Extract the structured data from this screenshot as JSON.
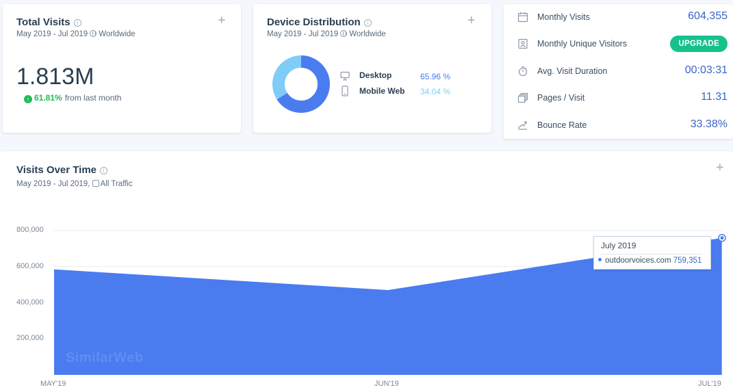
{
  "total_visits": {
    "title": "Total Visits",
    "date_range": "May 2019 - Jul 2019",
    "region": "Worldwide",
    "value": "1.813M",
    "change_pct": "61.81%",
    "change_text": "from last month",
    "colors": {
      "up": "#1fbd55"
    }
  },
  "device_distribution": {
    "title": "Device Distribution",
    "date_range": "May 2019 - Jul 2019",
    "region": "Worldwide",
    "devices": [
      {
        "name": "Desktop",
        "share": "65.96 %",
        "value": 65.96,
        "color": "#4a7cf0",
        "icon": "desktop-icon"
      },
      {
        "name": "Mobile Web",
        "share": "34.04 %",
        "value": 34.04,
        "color": "#7fcdf7",
        "icon": "mobile-icon"
      }
    ]
  },
  "metrics": [
    {
      "label": "Monthly Visits",
      "value": "604,355",
      "icon": "calendar-icon"
    },
    {
      "label": "Monthly Unique Visitors",
      "button": "UPGRADE",
      "icon": "id-card-icon"
    },
    {
      "label": "Avg. Visit Duration",
      "value": "00:03:31",
      "icon": "stopwatch-icon"
    },
    {
      "label": "Pages / Visit",
      "value": "11.31",
      "icon": "pages-icon"
    },
    {
      "label": "Bounce Rate",
      "value": "33.38%",
      "icon": "bounce-arrow-icon"
    }
  ],
  "visits_over_time": {
    "title": "Visits Over Time",
    "date_range": "May 2019 - Jul 2019,",
    "traffic": "All Traffic",
    "watermark": "SimilarWeb",
    "tooltip": {
      "title": "July 2019",
      "site": "outdoorvoices.com",
      "value": "759,351"
    }
  },
  "chart_data": {
    "type": "area",
    "categories": [
      "MAY'19",
      "JUN'19",
      "JUL'19"
    ],
    "series": [
      {
        "name": "outdoorvoices.com",
        "values": [
          585000,
          470000,
          759351
        ],
        "color": "#4a7cf0"
      }
    ],
    "yticks": [
      "800,000",
      "600,000",
      "400,000",
      "200,000"
    ],
    "ytick_values": [
      800000,
      600000,
      400000,
      200000
    ],
    "ylim": [
      0,
      800000
    ],
    "grid": true
  }
}
